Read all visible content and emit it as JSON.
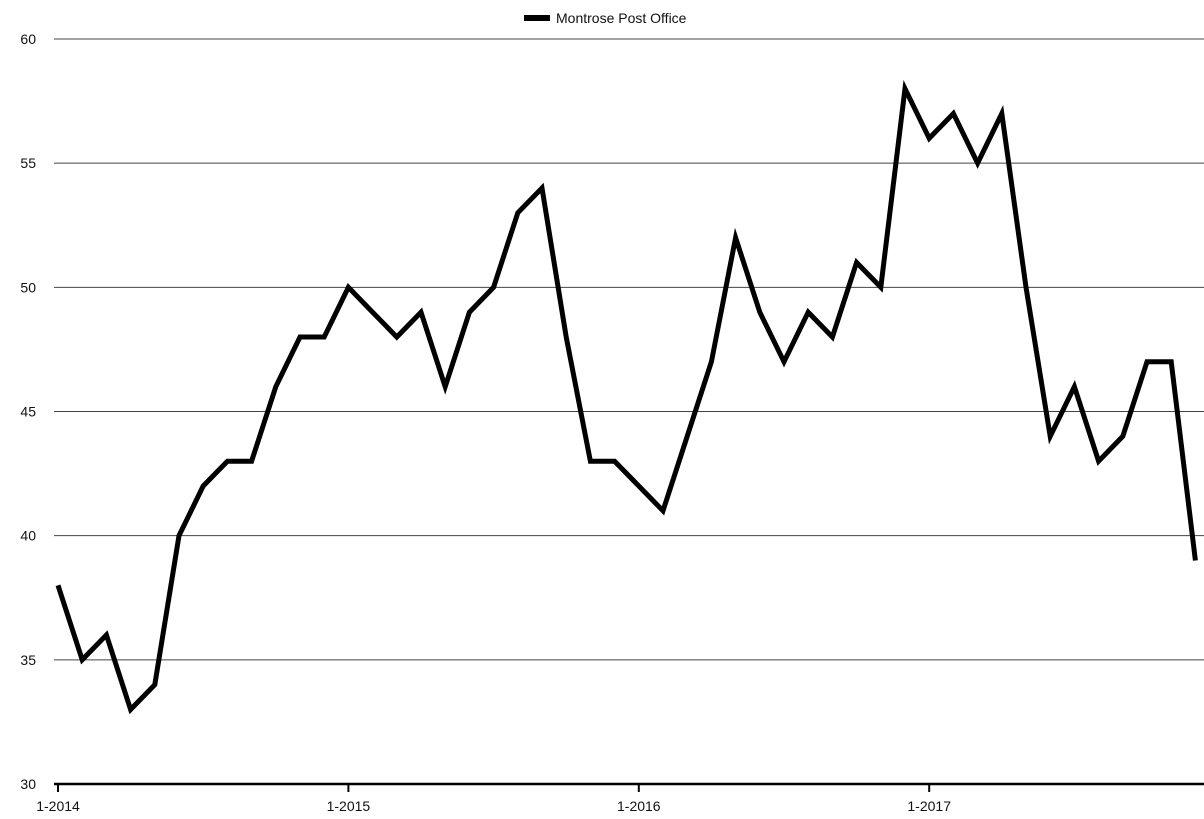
{
  "chart_data": {
    "type": "line",
    "legend": {
      "position": "top-center",
      "entries": [
        "Montrose Post Office"
      ]
    },
    "x_ticks": [
      "1-2014",
      "1-2015",
      "1-2016",
      "1-2017"
    ],
    "y_ticks": [
      "30",
      "35",
      "40",
      "45",
      "50",
      "55",
      "60"
    ],
    "ylim": [
      30,
      60
    ],
    "grid": true,
    "colors": {
      "line": "#000000",
      "grid": "#444444"
    },
    "series": [
      {
        "name": "Montrose Post Office",
        "x": [
          "2014-01",
          "2014-02",
          "2014-03",
          "2014-04",
          "2014-05",
          "2014-06",
          "2014-07",
          "2014-08",
          "2014-09",
          "2014-10",
          "2014-11",
          "2014-12",
          "2015-01",
          "2015-02",
          "2015-03",
          "2015-04",
          "2015-05",
          "2015-06",
          "2015-07",
          "2015-08",
          "2015-09",
          "2015-10",
          "2015-11",
          "2015-12",
          "2016-01",
          "2016-02",
          "2016-03",
          "2016-04",
          "2016-05",
          "2016-06",
          "2016-07",
          "2016-08",
          "2016-09",
          "2016-10",
          "2016-11",
          "2016-12",
          "2017-01",
          "2017-02",
          "2017-03",
          "2017-04",
          "2017-05",
          "2017-06",
          "2017-07",
          "2017-08",
          "2017-09",
          "2017-10",
          "2017-11",
          "2017-12"
        ],
        "values": [
          38,
          35,
          36,
          33,
          34,
          40,
          42,
          43,
          43,
          46,
          48,
          48,
          50,
          49,
          48,
          49,
          46,
          49,
          50,
          53,
          54,
          48,
          43,
          43,
          42,
          41,
          44,
          47,
          52,
          49,
          47,
          49,
          48,
          51,
          50,
          58,
          56,
          57,
          55,
          57,
          50,
          44,
          46,
          43,
          44,
          47,
          47,
          39
        ]
      }
    ]
  }
}
